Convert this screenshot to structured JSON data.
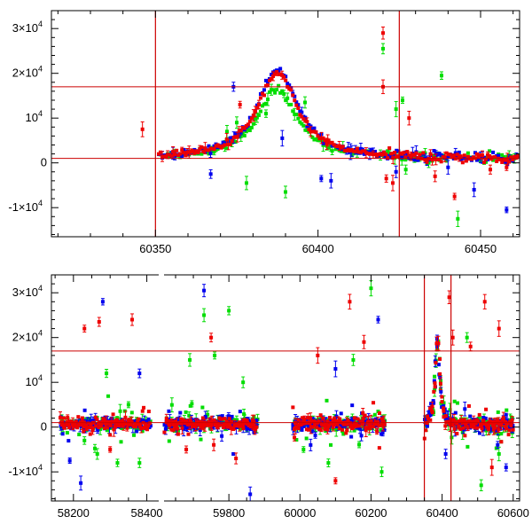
{
  "chart_data": [
    {
      "type": "scatter",
      "title": "",
      "xlabel": "",
      "ylabel": "",
      "xlim": [
        60318,
        60462
      ],
      "ylim": [
        -16500,
        34000
      ],
      "x_ticks": [
        60350,
        60400,
        60450
      ],
      "x_tick_labels": [
        "60350",
        "60400",
        "60450"
      ],
      "y_ticks": [
        -10000,
        0,
        10000,
        20000,
        30000
      ],
      "y_tick_labels": [
        {
          "mant": "-1×10",
          "exp": "4"
        },
        {
          "mant": "0",
          "exp": ""
        },
        {
          "mant": "10",
          "exp": "4"
        },
        {
          "mant": "2×10",
          "exp": "4"
        },
        {
          "mant": "3×10",
          "exp": "4"
        }
      ],
      "hlines": [
        17000,
        1000
      ],
      "vlines": [
        60350,
        60425
      ],
      "line_color": "#cc0000",
      "series": [
        {
          "name": "green",
          "color": "#00dd00",
          "baseline_scale": 0.82,
          "outliers": [
            [
              60372,
              7000
            ],
            [
              60378,
              -4500
            ],
            [
              60390,
              -6500
            ],
            [
              60396,
              13500
            ],
            [
              60420,
              25500
            ],
            [
              60426,
              14000
            ],
            [
              60424,
              12000
            ],
            [
              60427,
              -1500
            ],
            [
              60438,
              19500
            ],
            [
              60443,
              -12500
            ],
            [
              60375,
              9000
            ],
            [
              60384,
              11000
            ]
          ]
        },
        {
          "name": "blue",
          "color": "#0000ee",
          "baseline_scale": 1.06,
          "outliers": [
            [
              60374,
              17000
            ],
            [
              60367,
              -2500
            ],
            [
              60389,
              5500
            ],
            [
              60401,
              -3500
            ],
            [
              60404,
              -4000
            ],
            [
              60424,
              -2000
            ],
            [
              60448,
              -6000
            ],
            [
              60458,
              -10500
            ],
            [
              60410,
              2500
            ],
            [
              60440,
              -1000
            ]
          ]
        },
        {
          "name": "red",
          "color": "#ee0000",
          "baseline_scale": 1.0,
          "outliers": [
            [
              60346,
              7500
            ],
            [
              60420,
              29000
            ],
            [
              60420,
              17000
            ],
            [
              60421,
              -3500
            ],
            [
              60423,
              -4500
            ],
            [
              60428,
              10000
            ],
            [
              60436,
              -3000
            ],
            [
              60442,
              -7500
            ],
            [
              60453,
              -1500
            ],
            [
              60458,
              -1000
            ],
            [
              60376,
              13000
            ],
            [
              60403,
              5000
            ]
          ]
        }
      ]
    },
    {
      "type": "scatter",
      "title": "",
      "xlabel": "",
      "ylabel": "",
      "x_segments": [
        {
          "range": [
            58140,
            58430
          ],
          "ticks": [
            58200,
            58400
          ],
          "labels": [
            "58200",
            "58400"
          ]
        },
        {
          "range": [
            59620,
            60618
          ],
          "ticks": [
            59800,
            60000,
            60200,
            60400,
            60600
          ],
          "labels": [
            "59800",
            "60000",
            "60200",
            "60400",
            "60600"
          ]
        }
      ],
      "ylim": [
        -16500,
        34000
      ],
      "y_ticks": [
        -10000,
        0,
        10000,
        20000,
        30000
      ],
      "y_tick_labels": [
        {
          "mant": "-1×10",
          "exp": "4"
        },
        {
          "mant": "0",
          "exp": ""
        },
        {
          "mant": "10",
          "exp": "4"
        },
        {
          "mant": "2×10",
          "exp": "4"
        },
        {
          "mant": "3×10",
          "exp": "4"
        }
      ],
      "hlines": [
        17000,
        1000
      ],
      "vlines": [
        60350,
        60425
      ],
      "line_color": "#cc0000",
      "observing_seasons": [
        [
          58165,
          58410
        ],
        [
          59620,
          59880
        ],
        [
          59980,
          60240
        ],
        [
          60352,
          60600
        ]
      ],
      "series": [
        {
          "name": "green",
          "color": "#00dd00",
          "outliers": [
            [
              58230,
              -3000
            ],
            [
              58265,
              -6000
            ],
            [
              58290,
              12000
            ],
            [
              58320,
              -8000
            ],
            [
              58350,
              5000
            ],
            [
              58380,
              -8000
            ],
            [
              59690,
              15000
            ],
            [
              59730,
              25000
            ],
            [
              59760,
              16000
            ],
            [
              59800,
              26000
            ],
            [
              59840,
              10000
            ],
            [
              60010,
              -5000
            ],
            [
              60080,
              -8000
            ],
            [
              60150,
              15000
            ],
            [
              60200,
              31000
            ],
            [
              60230,
              -10000
            ],
            [
              60470,
              20000
            ],
            [
              60510,
              -13000
            ],
            [
              60560,
              -6000
            ]
          ]
        },
        {
          "name": "blue",
          "color": "#0000ee",
          "outliers": [
            [
              58190,
              -7500
            ],
            [
              58220,
              -12500
            ],
            [
              58280,
              28000
            ],
            [
              58380,
              12000
            ],
            [
              59730,
              30500
            ],
            [
              59780,
              -2000
            ],
            [
              59860,
              -15000
            ],
            [
              60030,
              -4000
            ],
            [
              60100,
              13000
            ],
            [
              60220,
              24000
            ],
            [
              60410,
              -6000
            ],
            [
              60580,
              -9000
            ]
          ]
        },
        {
          "name": "red",
          "color": "#ee0000",
          "outliers": [
            [
              58230,
              22000
            ],
            [
              58270,
              23500
            ],
            [
              58360,
              24000
            ],
            [
              58300,
              -5000
            ],
            [
              59680,
              -5000
            ],
            [
              59750,
              20000
            ],
            [
              59820,
              -7000
            ],
            [
              60050,
              16000
            ],
            [
              60100,
              -12000
            ],
            [
              60140,
              28000
            ],
            [
              60180,
              19000
            ],
            [
              60420,
              29000
            ],
            [
              60430,
              20000
            ],
            [
              60480,
              18000
            ],
            [
              60520,
              28000
            ],
            [
              60560,
              22000
            ],
            [
              60540,
              -9000
            ]
          ]
        }
      ]
    }
  ]
}
